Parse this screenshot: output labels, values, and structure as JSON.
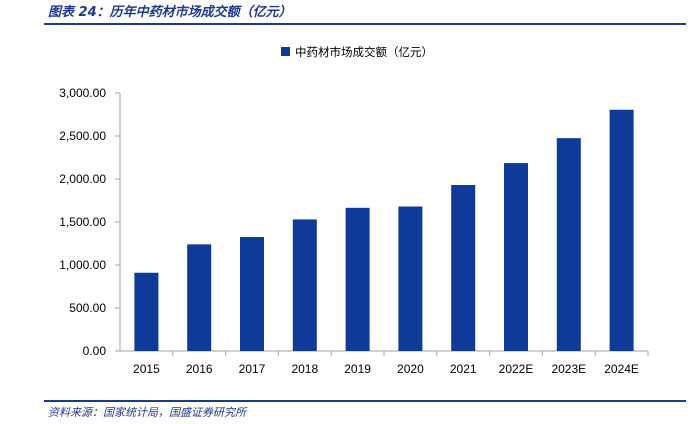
{
  "figure": {
    "title": "图表 24：历年中药材市场成交额（亿元）",
    "source": "资料来源：国家统计局，国盛证券研究所"
  },
  "colors": {
    "accent": "#1f3a8a",
    "bar": "#0f3a99"
  },
  "chart_data": {
    "type": "bar",
    "categories": [
      "2015",
      "2016",
      "2017",
      "2018",
      "2019",
      "2020",
      "2021",
      "2022E",
      "2023E",
      "2024E"
    ],
    "series": [
      {
        "name": "中药材市场成交额（亿元）",
        "values": [
          910,
          1240,
          1325,
          1530,
          1665,
          1680,
          1930,
          2185,
          2475,
          2805
        ]
      }
    ],
    "ylim": [
      0,
      3000
    ],
    "yticks": [
      "0.00",
      "500.00",
      "1,000.00",
      "1,500.00",
      "2,000.00",
      "2,500.00",
      "3,000.00"
    ],
    "ytick_values": [
      0,
      500,
      1000,
      1500,
      2000,
      2500,
      3000
    ],
    "grid": false,
    "legend": "top-center"
  }
}
